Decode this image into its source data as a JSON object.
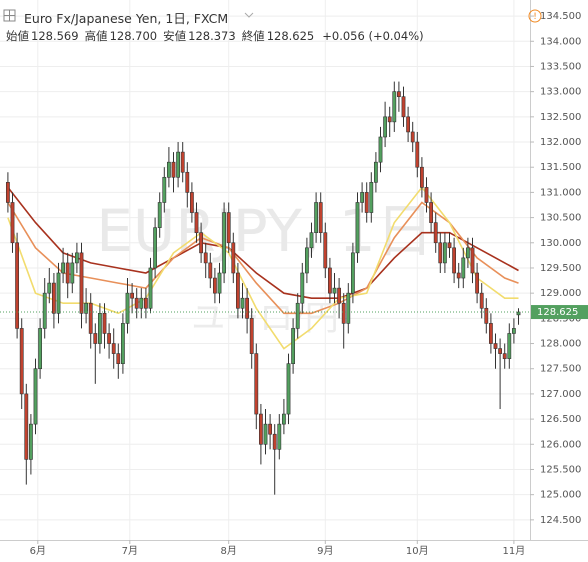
{
  "chart_data": {
    "type": "candlestick",
    "title": "Euro Fx/Japanese Yen, 1日, FXCM",
    "legend": [
      {
        "label": "始値",
        "value": "128.569"
      },
      {
        "label": "高値",
        "value": "128.700"
      },
      {
        "label": "安値",
        "value": "128.373"
      },
      {
        "label": "終値",
        "value": "128.625"
      }
    ],
    "change": "+0.056 (+0.04%)",
    "watermark": "EURJPY, 1日",
    "watermark_sub": "ユーロ/円",
    "up_color": "#53a05f",
    "down_color": "#c0422f",
    "grid": true,
    "xlim": [
      -1.5,
      113.5
    ],
    "xticks": [
      {
        "value": 6.5,
        "label": "6月"
      },
      {
        "value": 26.5,
        "label": "7月"
      },
      {
        "value": 48,
        "label": "8月"
      },
      {
        "value": 69,
        "label": "9月"
      },
      {
        "value": 89,
        "label": "10月"
      },
      {
        "value": 110,
        "label": "11月"
      }
    ],
    "ylim": [
      124.1,
      134.72
    ],
    "yticks": [
      {
        "value": 124.5,
        "label": "124.500"
      },
      {
        "value": 125,
        "label": "125.000"
      },
      {
        "value": 125.5,
        "label": "125.500"
      },
      {
        "value": 126,
        "label": "126.000"
      },
      {
        "value": 126.5,
        "label": "126.500"
      },
      {
        "value": 127,
        "label": "127.000"
      },
      {
        "value": 127.5,
        "label": "127.500"
      },
      {
        "value": 128,
        "label": "128.000"
      },
      {
        "value": 128.5,
        "label": "128.500"
      },
      {
        "value": 129,
        "label": "129.000"
      },
      {
        "value": 129.5,
        "label": "129.500"
      },
      {
        "value": 130,
        "label": "130.000"
      },
      {
        "value": 130.5,
        "label": "130.500"
      },
      {
        "value": 131,
        "label": "131.000"
      },
      {
        "value": 131.5,
        "label": "131.500"
      },
      {
        "value": 132,
        "label": "132.000"
      },
      {
        "value": 132.5,
        "label": "132.500"
      },
      {
        "value": 133,
        "label": "133.000"
      },
      {
        "value": 133.5,
        "label": "133.500"
      },
      {
        "value": 134,
        "label": "134.000"
      },
      {
        "value": 134.5,
        "label": "134.500"
      }
    ],
    "last_price": {
      "value": 128.625,
      "label": "128.625"
    },
    "open": [
      131.2,
      130.8,
      130.0,
      128.3,
      127.0,
      125.7,
      126.4,
      127.5,
      128.3,
      129.0,
      129.2,
      128.6,
      129.4,
      129.6,
      129.2,
      129.6,
      129.8,
      128.6,
      128.8,
      128.2,
      128.0,
      128.6,
      128.2,
      128.0,
      127.8,
      127.6,
      128.4,
      129.0,
      128.9,
      128.7,
      128.9,
      128.7,
      129.5,
      130.3,
      130.8,
      131.3,
      131.6,
      131.3,
      131.8,
      131.4,
      131.0,
      130.6,
      130.2,
      129.8,
      129.6,
      129.3,
      129.0,
      129.4,
      130.6,
      130.0,
      129.4,
      128.7,
      128.9,
      128.5,
      127.8,
      126.6,
      126.0,
      126.4,
      126.2,
      125.9,
      126.4,
      126.6,
      127.6,
      128.3,
      128.8,
      129.4,
      129.9,
      130.2,
      130.8,
      130.2,
      129.5,
      129.0,
      129.1,
      128.8,
      128.4,
      129.0,
      129.8,
      130.8,
      131.0,
      130.6,
      131.2,
      131.6,
      132.1,
      132.5,
      132.4,
      133.0,
      132.9,
      132.5,
      132.2,
      132.0,
      131.5,
      131.1,
      130.8,
      130.4,
      130.0,
      129.6,
      130.0,
      129.9,
      129.4,
      129.3,
      129.7,
      129.9,
      129.4,
      129.0,
      128.7,
      128.4,
      128.0,
      127.9,
      127.8,
      127.7,
      128.2,
      128.569
    ],
    "high": [
      131.4,
      131.0,
      130.2,
      128.5,
      127.2,
      126.6,
      127.7,
      128.5,
      129.3,
      129.5,
      129.4,
      129.6,
      129.9,
      129.8,
      129.8,
      130.0,
      130.0,
      129.1,
      129.0,
      128.4,
      128.8,
      128.8,
      128.4,
      128.3,
      128.0,
      128.6,
      129.3,
      129.2,
      129.1,
      129.1,
      129.1,
      129.7,
      130.5,
      131.0,
      131.5,
      131.9,
      131.8,
      132.0,
      132.0,
      131.6,
      131.2,
      130.8,
      130.4,
      130.0,
      129.8,
      129.5,
      129.6,
      130.8,
      130.8,
      130.2,
      129.6,
      129.2,
      129.1,
      128.7,
      128.0,
      126.8,
      126.7,
      126.6,
      126.4,
      126.6,
      126.9,
      127.8,
      128.5,
      129.0,
      129.6,
      130.1,
      130.4,
      131.0,
      131.0,
      130.4,
      129.7,
      129.4,
      129.3,
      129.0,
      129.2,
      130.0,
      131.0,
      131.2,
      131.2,
      131.4,
      131.8,
      132.3,
      132.8,
      132.7,
      133.2,
      133.2,
      133.1,
      132.7,
      132.4,
      132.2,
      131.7,
      131.3,
      131.0,
      130.6,
      130.2,
      130.2,
      130.2,
      130.1,
      129.6,
      129.9,
      130.1,
      130.1,
      129.6,
      129.2,
      128.9,
      128.6,
      128.2,
      128.1,
      128.0,
      128.4,
      128.5,
      128.7
    ],
    "low": [
      130.6,
      129.8,
      128.1,
      126.7,
      125.2,
      125.4,
      126.2,
      127.3,
      128.1,
      128.8,
      128.3,
      128.4,
      129.2,
      128.9,
      129.0,
      129.4,
      128.3,
      128.4,
      127.9,
      127.2,
      127.8,
      127.9,
      127.7,
      127.5,
      127.3,
      127.4,
      128.2,
      128.6,
      128.5,
      128.5,
      128.5,
      128.6,
      129.3,
      130.1,
      130.6,
      131.1,
      131.0,
      131.1,
      131.2,
      130.7,
      130.4,
      130.0,
      129.6,
      129.3,
      129.1,
      128.8,
      128.8,
      129.2,
      129.8,
      129.2,
      128.5,
      128.5,
      128.2,
      127.5,
      126.3,
      125.6,
      125.8,
      125.9,
      125.0,
      125.7,
      126.2,
      126.4,
      127.4,
      128.1,
      128.6,
      129.2,
      129.7,
      130.0,
      130.0,
      129.3,
      128.8,
      128.8,
      128.5,
      127.9,
      128.2,
      128.8,
      129.6,
      130.6,
      130.4,
      130.4,
      131.0,
      131.4,
      131.9,
      132.1,
      132.2,
      132.6,
      132.3,
      132.0,
      131.8,
      131.3,
      130.9,
      130.6,
      130.2,
      129.8,
      129.4,
      129.4,
      129.7,
      129.2,
      129.1,
      129.1,
      129.5,
      129.2,
      128.8,
      128.5,
      128.2,
      127.8,
      127.5,
      126.7,
      127.5,
      127.5,
      128.0,
      128.373
    ],
    "close": [
      130.8,
      130.0,
      128.3,
      127.0,
      125.7,
      126.4,
      127.5,
      128.3,
      129.0,
      129.2,
      128.6,
      129.4,
      129.6,
      129.2,
      129.6,
      129.8,
      128.6,
      128.8,
      128.2,
      128.0,
      128.6,
      128.2,
      128.0,
      127.8,
      127.6,
      128.4,
      129.0,
      128.9,
      128.7,
      128.9,
      128.7,
      129.5,
      130.3,
      130.8,
      131.3,
      131.6,
      131.3,
      131.8,
      131.4,
      131.0,
      130.6,
      130.2,
      129.8,
      129.6,
      129.3,
      129.0,
      129.4,
      130.6,
      130.0,
      129.4,
      128.7,
      128.9,
      128.5,
      127.8,
      126.6,
      126.0,
      126.4,
      126.2,
      125.9,
      126.4,
      126.6,
      127.6,
      128.3,
      128.8,
      129.4,
      129.9,
      130.2,
      130.8,
      130.2,
      129.5,
      129.0,
      129.1,
      128.8,
      128.4,
      129.0,
      129.8,
      130.8,
      131.0,
      130.6,
      131.2,
      131.6,
      132.1,
      132.5,
      132.4,
      133.0,
      132.9,
      132.5,
      132.2,
      132.0,
      131.5,
      131.1,
      130.8,
      130.4,
      130.0,
      129.6,
      130.0,
      129.9,
      129.4,
      129.3,
      129.7,
      129.9,
      129.4,
      129.0,
      128.7,
      128.4,
      128.0,
      127.9,
      127.8,
      127.7,
      128.2,
      128.3,
      128.625
    ],
    "ma_x": [
      0,
      6,
      12,
      18,
      24,
      30,
      36,
      42,
      48,
      54,
      60,
      66,
      72,
      78,
      84,
      90,
      96,
      102,
      108,
      111
    ],
    "series": [
      {
        "color": "#a8321e",
        "values": [
          131.1,
          130.4,
          129.8,
          129.6,
          129.5,
          129.4,
          129.7,
          130.0,
          129.9,
          129.4,
          129.0,
          128.9,
          128.9,
          129.1,
          129.7,
          130.2,
          130.2,
          129.9,
          129.6,
          129.45
        ]
      },
      {
        "color": "#e8905a",
        "values": [
          130.8,
          129.9,
          129.4,
          129.3,
          129.2,
          129.1,
          129.7,
          130.1,
          129.9,
          129.2,
          128.6,
          128.6,
          128.8,
          129.1,
          130.1,
          130.8,
          130.4,
          129.7,
          129.3,
          129.2
        ]
      },
      {
        "color": "#f2dc6e",
        "values": [
          130.5,
          129.0,
          128.8,
          128.8,
          128.6,
          128.9,
          129.8,
          130.2,
          129.8,
          128.7,
          127.9,
          128.3,
          128.9,
          129.0,
          130.4,
          131.1,
          130.4,
          129.3,
          128.9,
          128.9
        ]
      }
    ]
  }
}
